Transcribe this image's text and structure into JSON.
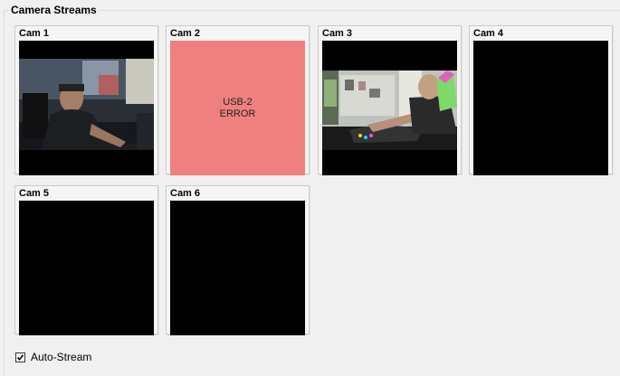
{
  "group": {
    "title": "Camera Streams"
  },
  "cameras": [
    {
      "label": "Cam 1",
      "state": "live"
    },
    {
      "label": "Cam 2",
      "state": "error",
      "error_text": "USB-2\nERROR"
    },
    {
      "label": "Cam 3",
      "state": "live"
    },
    {
      "label": "Cam 4",
      "state": "no-signal"
    },
    {
      "label": "Cam 5",
      "state": "no-signal"
    },
    {
      "label": "Cam 6",
      "state": "no-signal"
    }
  ],
  "auto_stream": {
    "label": "Auto-Stream",
    "checked": true
  },
  "colors": {
    "error_bg": "#f08080",
    "panel_bg": "#f0f0f0",
    "feed_bg": "#000000"
  }
}
